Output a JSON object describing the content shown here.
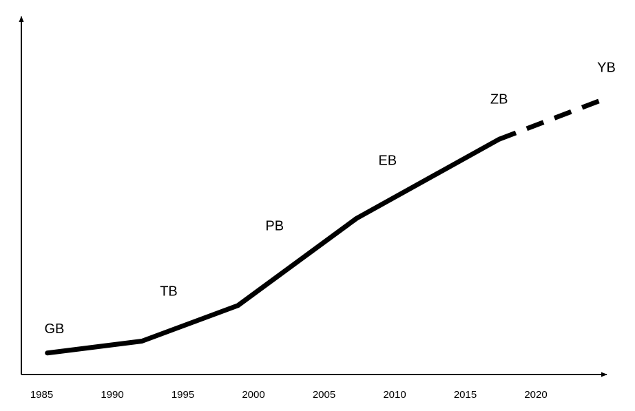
{
  "chart_data": {
    "type": "line",
    "x_tick_labels": [
      "1985",
      "1990",
      "1995",
      "2000",
      "2005",
      "2010",
      "2015",
      "2020"
    ],
    "xlim": [
      1985,
      2025
    ],
    "series": [
      {
        "style": "solid",
        "points": [
          [
            1985.4,
            0.3
          ],
          [
            1992.1,
            0.6
          ],
          [
            1998.9,
            1.5
          ],
          [
            2007.3,
            3.7
          ],
          [
            2017.4,
            5.7
          ]
        ]
      },
      {
        "style": "dashed",
        "points": [
          [
            2017.4,
            5.7
          ],
          [
            2025.1,
            6.75
          ]
        ]
      }
    ],
    "annotations": [
      {
        "text": "GB",
        "x": 1985.9,
        "y": 0.8
      },
      {
        "text": "TB",
        "x": 1994.0,
        "y": 1.75
      },
      {
        "text": "PB",
        "x": 2001.5,
        "y": 3.4
      },
      {
        "text": "EB",
        "x": 2009.5,
        "y": 5.05
      },
      {
        "text": "ZB",
        "x": 2017.4,
        "y": 6.6
      },
      {
        "text": "YB",
        "x": 2025.0,
        "y": 7.4
      }
    ],
    "colors": {
      "line": "#000000",
      "axis": "#000000",
      "background": "#ffffff"
    }
  }
}
